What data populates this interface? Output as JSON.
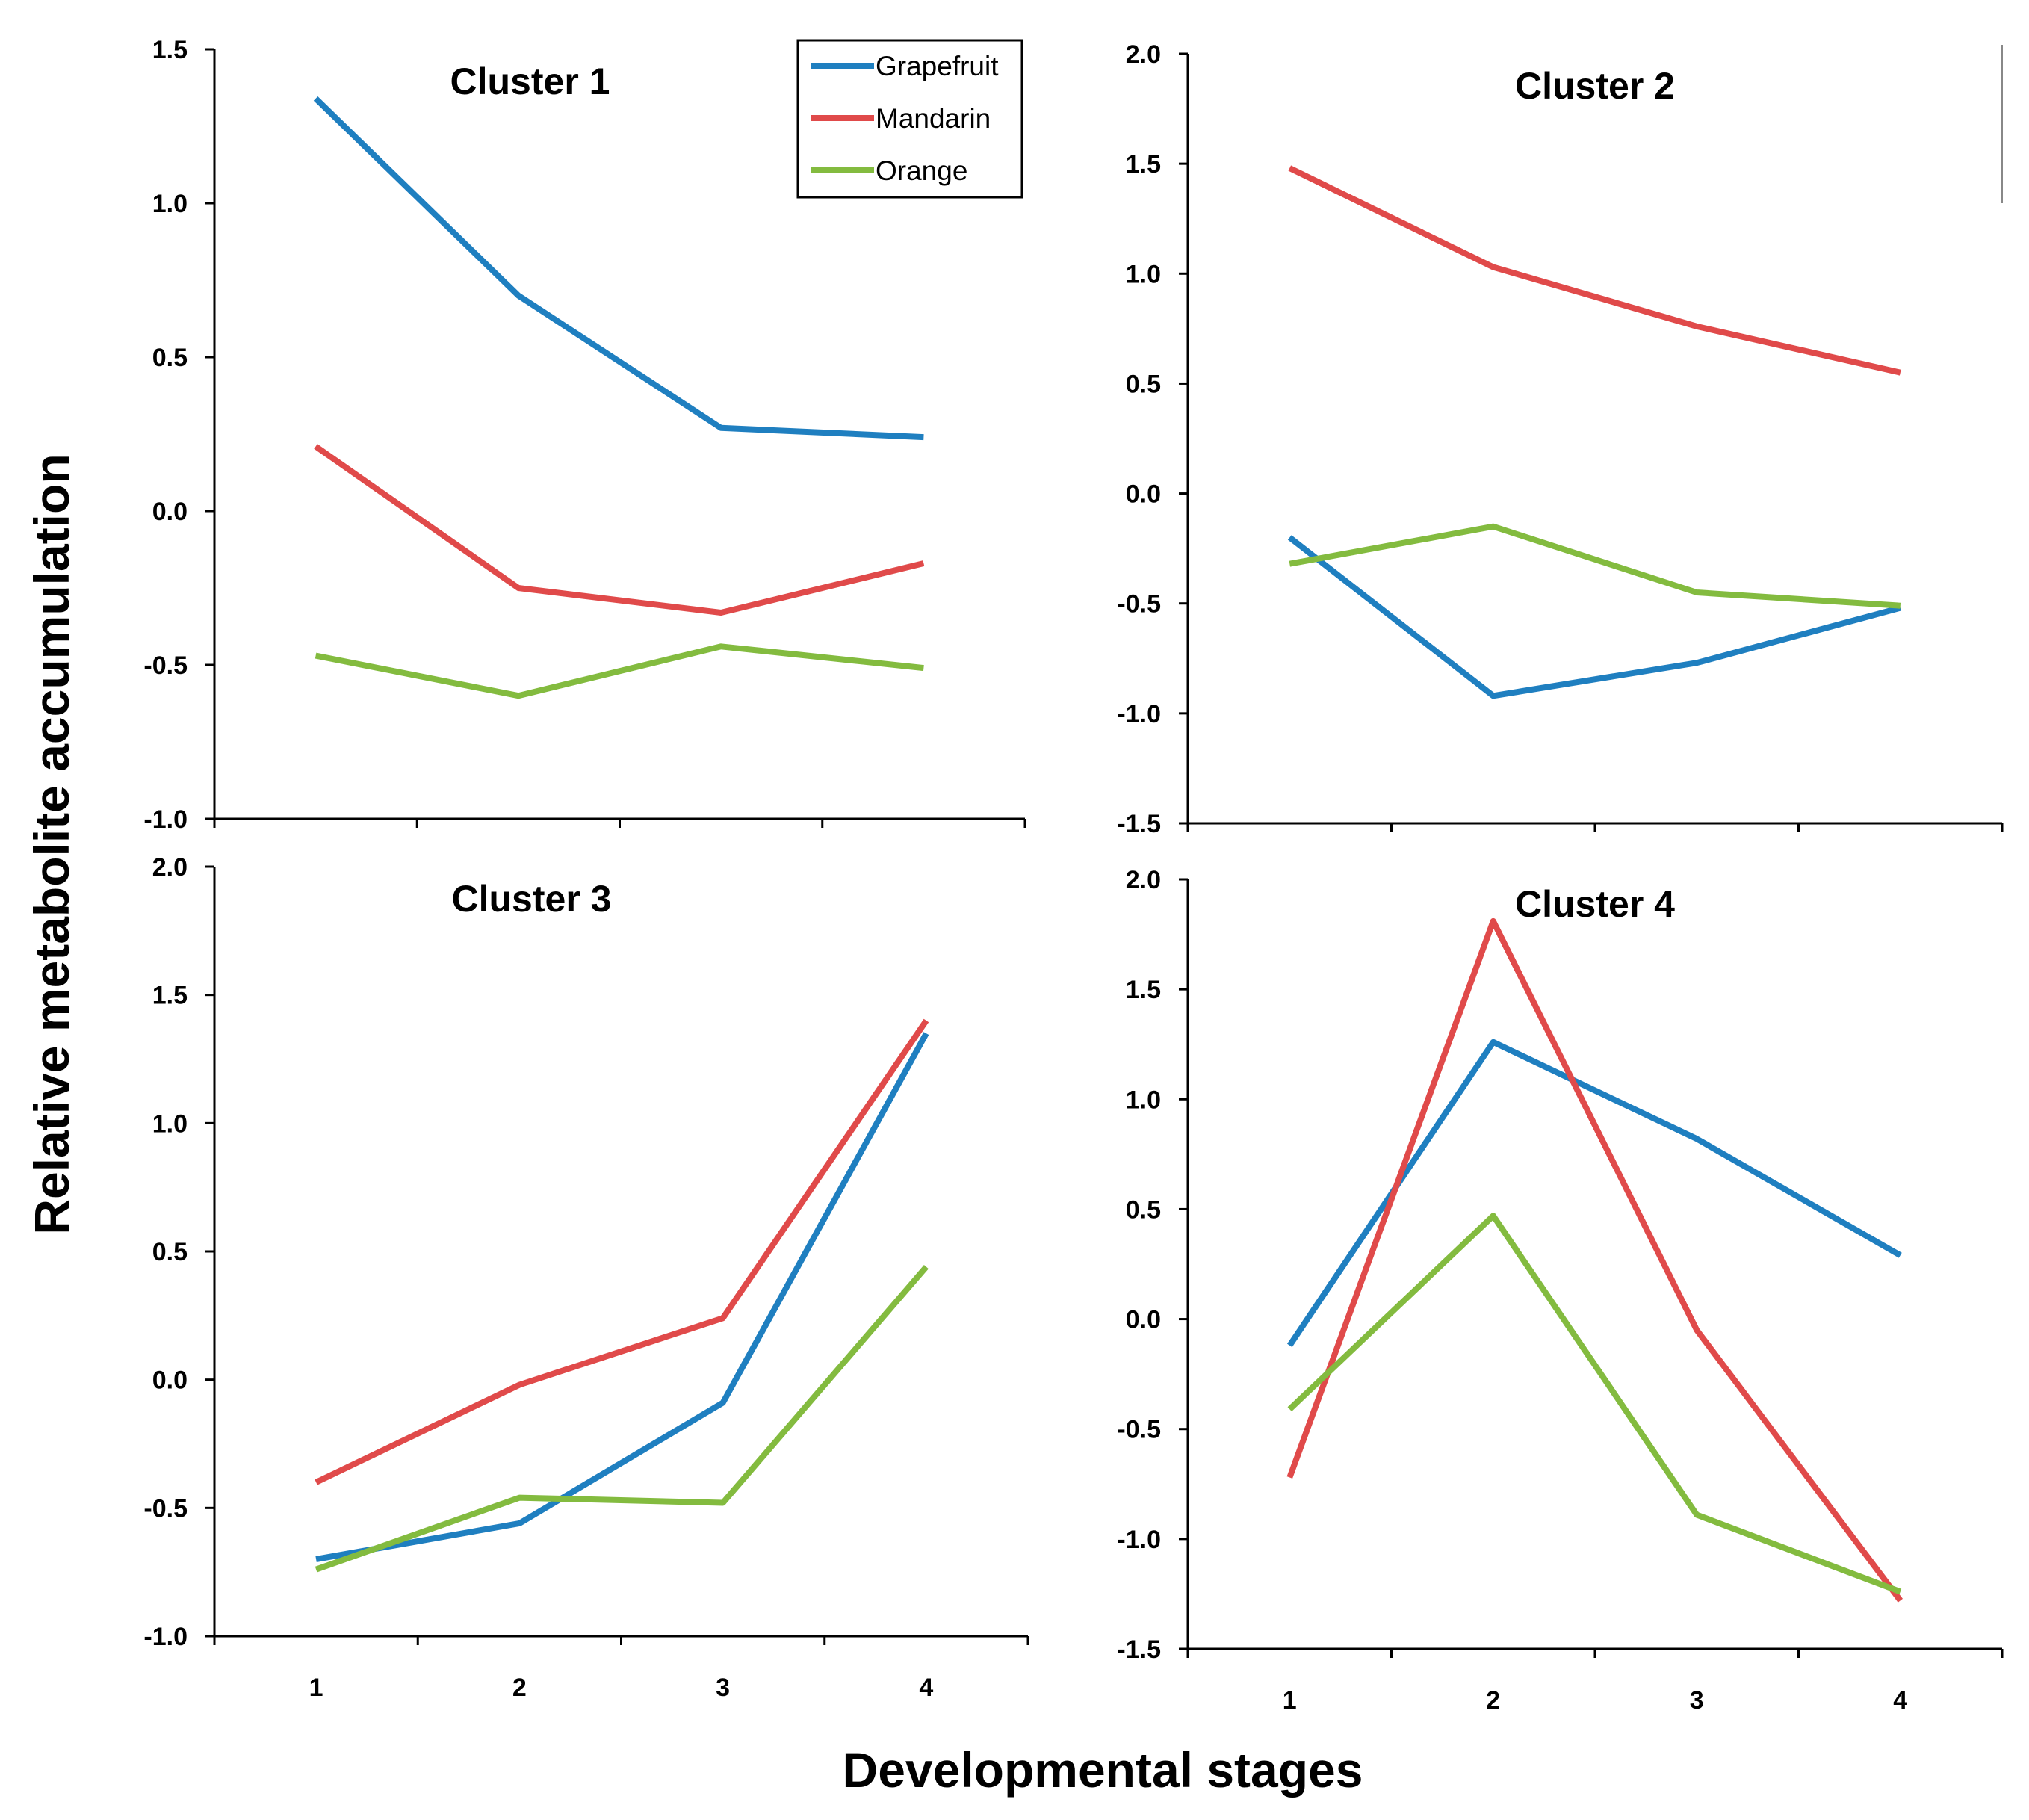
{
  "figure": {
    "ylabel": "Relative metabolite accumulation",
    "xlabel": "Developmental stages"
  },
  "legend": [
    {
      "name": "Grapefruit",
      "color": "#1f7fc0"
    },
    {
      "name": "Mandarin",
      "color": "#e04a4a"
    },
    {
      "name": "Orange",
      "color": "#83bb3f"
    }
  ],
  "chart_data": [
    {
      "type": "line",
      "title": "Cluster 1",
      "x": [
        "1",
        "2",
        "3",
        "4"
      ],
      "ylim": [
        -1.0,
        1.5
      ],
      "yticks": [
        "1.5",
        "1.0",
        "0.5",
        "0.0",
        "-0.5",
        "-1.0"
      ],
      "xticks": [],
      "series": [
        {
          "name": "Grapefruit",
          "values": [
            1.34,
            0.7,
            0.27,
            0.24
          ]
        },
        {
          "name": "Mandarin",
          "values": [
            0.21,
            -0.25,
            -0.33,
            -0.17
          ]
        },
        {
          "name": "Orange",
          "values": [
            -0.47,
            -0.6,
            -0.44,
            -0.51
          ]
        }
      ]
    },
    {
      "type": "line",
      "title": "Cluster 2",
      "x": [
        "1",
        "2",
        "3",
        "4"
      ],
      "ylim": [
        -1.5,
        2.0
      ],
      "yticks": [
        "2.0",
        "1.5",
        "1.0",
        "0.5",
        "0.0",
        "-0.5",
        "-1.0",
        "-1.5"
      ],
      "xticks": [],
      "series": [
        {
          "name": "Grapefruit",
          "values": [
            -0.2,
            -0.92,
            -0.77,
            -0.52
          ]
        },
        {
          "name": "Mandarin",
          "values": [
            1.48,
            1.03,
            0.76,
            0.55
          ]
        },
        {
          "name": "Orange",
          "values": [
            -0.32,
            -0.15,
            -0.45,
            -0.51
          ]
        }
      ]
    },
    {
      "type": "line",
      "title": "Cluster 3",
      "x": [
        "1",
        "2",
        "3",
        "4"
      ],
      "ylim": [
        -1.0,
        2.0
      ],
      "yticks": [
        "2.0",
        "1.5",
        "1.0",
        "0.5",
        "0.0",
        "-0.5",
        "-1.0"
      ],
      "xticks": [
        "1",
        "2",
        "3",
        "4"
      ],
      "series": [
        {
          "name": "Grapefruit",
          "values": [
            -0.7,
            -0.56,
            -0.09,
            1.35
          ]
        },
        {
          "name": "Mandarin",
          "values": [
            -0.4,
            -0.02,
            0.24,
            1.4
          ]
        },
        {
          "name": "Orange",
          "values": [
            -0.74,
            -0.46,
            -0.48,
            0.44
          ]
        }
      ]
    },
    {
      "type": "line",
      "title": "Cluster 4",
      "x": [
        "1",
        "2",
        "3",
        "4"
      ],
      "ylim": [
        -1.5,
        2.0
      ],
      "yticks": [
        "2.0",
        "1.5",
        "1.0",
        "0.5",
        "0.0",
        "-0.5",
        "-1.0",
        "-1.5"
      ],
      "xticks": [
        "1",
        "2",
        "3",
        "4"
      ],
      "series": [
        {
          "name": "Grapefruit",
          "values": [
            -0.12,
            1.26,
            0.82,
            0.29
          ]
        },
        {
          "name": "Mandarin",
          "values": [
            -0.72,
            1.81,
            -0.05,
            -1.28
          ]
        },
        {
          "name": "Orange",
          "values": [
            -0.41,
            0.47,
            -0.89,
            -1.24
          ]
        }
      ]
    }
  ]
}
